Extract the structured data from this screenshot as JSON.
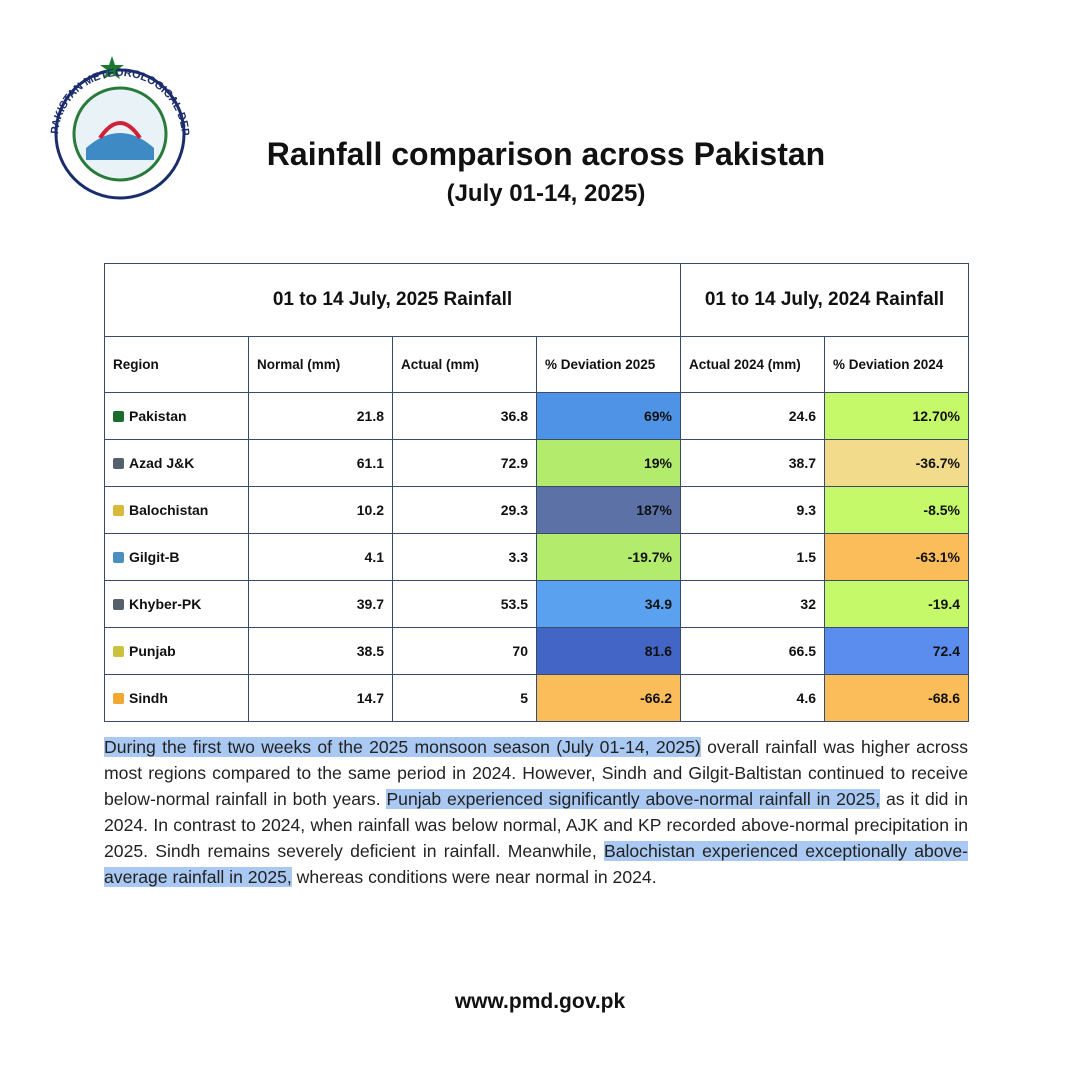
{
  "logo": {
    "text": "PAKISTAN METEOROLOGICAL DEPARTMENT"
  },
  "header": {
    "title": "Rainfall comparison across Pakistan",
    "subtitle": "(July 01-14, 2025)"
  },
  "table": {
    "groups": [
      "01 to 14 July, 2025 Rainfall",
      "01 to 14 July, 2024 Rainfall"
    ],
    "columns": [
      "Region",
      "Normal (mm)",
      "Actual (mm)",
      "% Deviation 2025",
      "Actual 2024 (mm)",
      "% Deviation 2024"
    ],
    "rows": [
      {
        "cells": [
          "Pakistan",
          "21.8",
          "36.8",
          "69%",
          "24.6",
          "12.70%"
        ],
        "icon": "#1b6b2f",
        "colors": [
          "#4f93e6",
          "#c6f96a"
        ]
      },
      {
        "cells": [
          "Azad J&K",
          "61.1",
          "72.9",
          "19%",
          "38.7",
          "-36.7%"
        ],
        "icon": "#55606a",
        "colors": [
          "#b3ec6c",
          "#f2dc8c"
        ]
      },
      {
        "cells": [
          "Balochistan",
          "10.2",
          "29.3",
          "187%",
          "9.3",
          "-8.5%"
        ],
        "icon": "#d9b93a",
        "colors": [
          "#5c72a6",
          "#c6f96a"
        ]
      },
      {
        "cells": [
          "Gilgit-B",
          "4.1",
          "3.3",
          "-19.7%",
          "1.5",
          "-63.1%"
        ],
        "icon": "#4a8fc0",
        "colors": [
          "#b3ec6c",
          "#fbbd5a"
        ]
      },
      {
        "cells": [
          "Khyber-PK",
          "39.7",
          "53.5",
          "34.9",
          "32",
          "-19.4"
        ],
        "icon": "#55606a",
        "colors": [
          "#5aa2f0",
          "#c6f96a"
        ]
      },
      {
        "cells": [
          "Punjab",
          "38.5",
          "70",
          "81.6",
          "66.5",
          "72.4"
        ],
        "icon": "#c9c23a",
        "colors": [
          "#4265c6",
          "#5b8def"
        ]
      },
      {
        "cells": [
          "Sindh",
          "14.7",
          "5",
          "-66.2",
          "4.6",
          "-68.6"
        ],
        "icon": "#f0a830",
        "colors": [
          "#fbbd5a",
          "#fbbd5a"
        ]
      }
    ]
  },
  "paragraph": {
    "segments": [
      {
        "text": "During the first two weeks of the 2025 monsoon season (July 01-14, 2025)",
        "highlight": true
      },
      {
        "text": " overall rainfall was higher across most regions compared to the same period in 2024. However, Sindh and Gilgit-Baltistan continued to receive below-normal rainfall in both years. ",
        "highlight": false
      },
      {
        "text": "Punjab experienced significantly above-normal rainfall in 2025,",
        "highlight": true
      },
      {
        "text": " as it did in 2024. In contrast to 2024, when rainfall was below normal, AJK and KP recorded above-normal precipitation in 2025. Sindh remains severely deficient in rainfall. Meanwhile, ",
        "highlight": false
      },
      {
        "text": "Balochistan experienced exceptionally above-average rainfall in 2025,",
        "highlight": true
      },
      {
        "text": " whereas conditions were near normal in 2024.",
        "highlight": false
      }
    ]
  },
  "footer": {
    "url": "www.pmd.gov.pk"
  }
}
